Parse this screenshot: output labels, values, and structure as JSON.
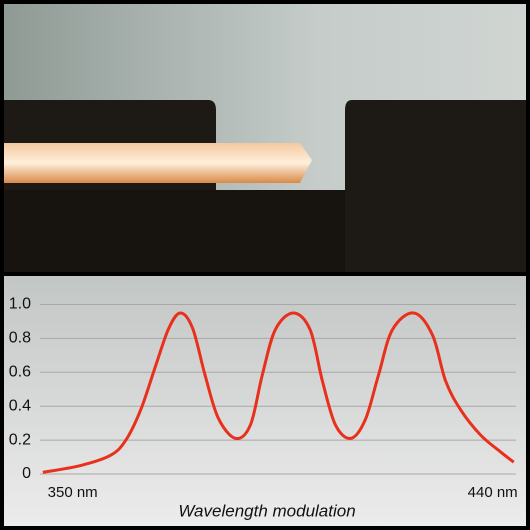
{
  "chart_data": {
    "type": "line",
    "title": "Wavelength modulation",
    "x": [
      343.6,
      351.7,
      358.1,
      361.4,
      364.6,
      367.8,
      370.6,
      373.1,
      375.7,
      378.4,
      381.2,
      384.9,
      388.1,
      390.6,
      393.4,
      397.3,
      400.9,
      403.5,
      406.3,
      409.6,
      412.7,
      415.5,
      418.5,
      423.1,
      427.1,
      429.9,
      433.1,
      437.4,
      441.7,
      444.5
    ],
    "series": [
      {
        "color": "#e8301c",
        "values": [
          0.01,
          0.05,
          0.11,
          0.2,
          0.38,
          0.64,
          0.86,
          0.95,
          0.86,
          0.58,
          0.33,
          0.21,
          0.29,
          0.58,
          0.85,
          0.95,
          0.85,
          0.55,
          0.29,
          0.21,
          0.32,
          0.58,
          0.85,
          0.95,
          0.82,
          0.55,
          0.38,
          0.23,
          0.13,
          0.07
        ]
      }
    ],
    "xlim": [
      343,
      445
    ],
    "xticks": [
      {
        "value": 350,
        "label": "350 nm"
      },
      {
        "value": 440,
        "label": "440 nm"
      }
    ],
    "ylim": [
      0,
      1.05
    ],
    "yticks": [
      0,
      0.2,
      0.4,
      0.6,
      0.8,
      {
        "value": 1,
        "label": "1.0"
      }
    ],
    "grid": true
  }
}
